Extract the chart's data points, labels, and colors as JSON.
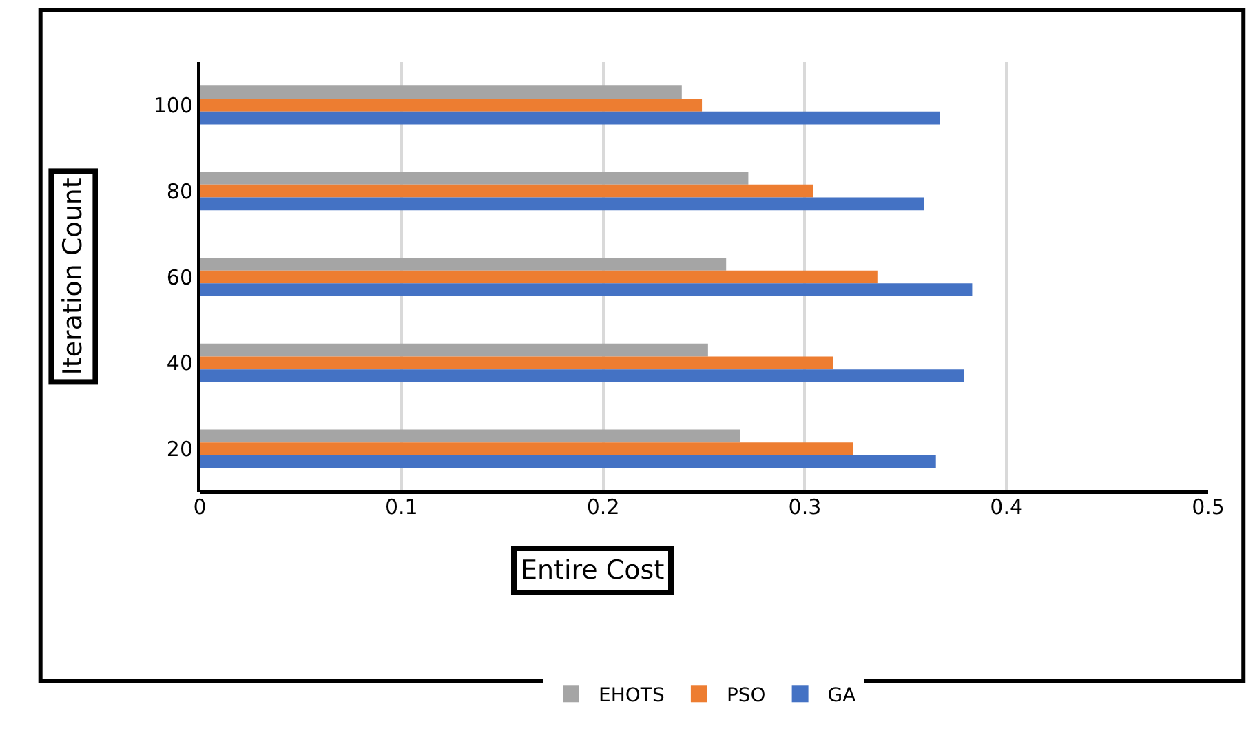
{
  "chart_data": {
    "type": "bar",
    "orientation": "horizontal",
    "xlabel": "Entire Cost",
    "ylabel": "Iteration Count",
    "categories": [
      "100",
      "80",
      "60",
      "40",
      "20"
    ],
    "series": [
      {
        "name": "EHOTS",
        "color": "#a5a5a5",
        "values": [
          0.239,
          0.272,
          0.261,
          0.252,
          0.268
        ]
      },
      {
        "name": "PSO",
        "color": "#ed7d31",
        "values": [
          0.249,
          0.304,
          0.336,
          0.314,
          0.324
        ]
      },
      {
        "name": "GA",
        "color": "#4472c4",
        "values": [
          0.367,
          0.359,
          0.383,
          0.379,
          0.365
        ]
      }
    ],
    "xlim": [
      0,
      0.5
    ],
    "xticks": [
      0,
      0.1,
      0.2,
      0.3,
      0.4,
      0.5
    ],
    "grid": "x",
    "legend": "bottom"
  }
}
